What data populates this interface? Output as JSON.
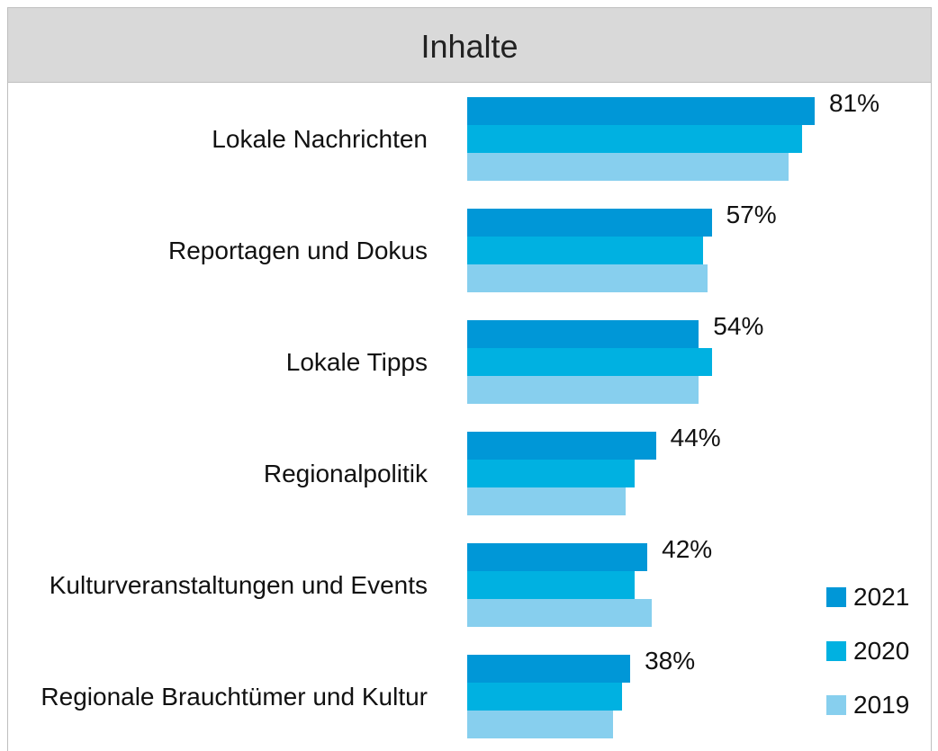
{
  "chart_data": {
    "type": "bar",
    "orientation": "horizontal",
    "title": "Inhalte",
    "categories": [
      "Lokale Nachrichten",
      "Reportagen und Dokus",
      "Lokale Tipps",
      "Regionalpolitik",
      "Kulturveranstaltungen und Events",
      "Regionale Brauchtümer und Kultur"
    ],
    "series": [
      {
        "name": "2021",
        "color": "#0097d7",
        "values": [
          81,
          57,
          54,
          44,
          42,
          38
        ],
        "value_labels": [
          "81%",
          "57%",
          "54%",
          "44%",
          "42%",
          "38%"
        ]
      },
      {
        "name": "2020",
        "color": "#00b1e1",
        "values": [
          78,
          55,
          57,
          39,
          39,
          36
        ]
      },
      {
        "name": "2019",
        "color": "#87cfee",
        "values": [
          75,
          56,
          54,
          37,
          43,
          34
        ]
      }
    ],
    "legend": "bottom-right"
  }
}
